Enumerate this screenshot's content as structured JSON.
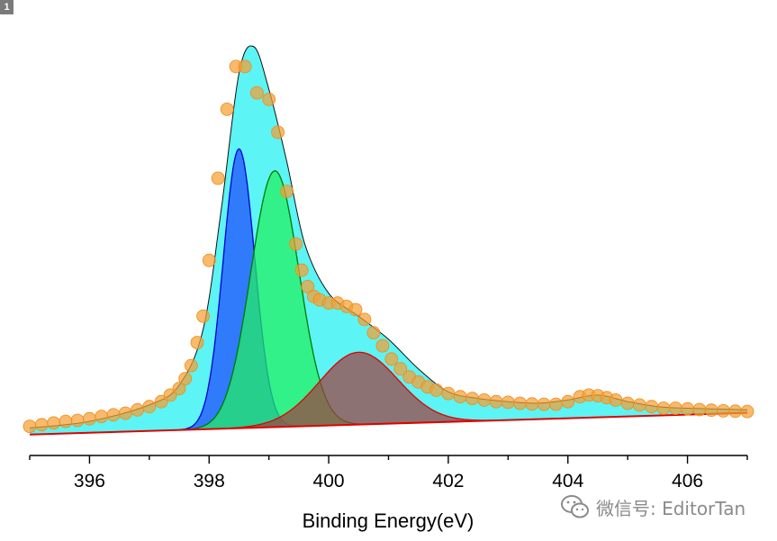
{
  "panel_label": "1",
  "watermark": {
    "icon": "wechat-icon",
    "text": "微信号: EditorTan"
  },
  "chart_data": {
    "type": "line",
    "xlabel": "Binding Energy(eV)",
    "ylabel": "",
    "xlim": [
      395,
      407
    ],
    "x_ticks": [
      396,
      398,
      400,
      402,
      404,
      406
    ],
    "y_axis_visible": false,
    "grid": false,
    "legend": "none",
    "background": {
      "name": "baseline",
      "color": "#e00000",
      "start": [
        395,
        2.0
      ],
      "end": [
        407,
        8.6
      ]
    },
    "peaks": [
      {
        "center": 398.5,
        "height": 85,
        "fwhm": 0.62,
        "fill": "#1f4cff",
        "edge": "#0000cc"
      },
      {
        "center": 399.1,
        "height": 78,
        "fwhm": 0.95,
        "fill": "#22f060",
        "edge": "#007a00"
      },
      {
        "center": 400.5,
        "height": 22,
        "fwhm": 1.55,
        "fill": "#a04040",
        "edge": "#e00000"
      }
    ],
    "envelope": {
      "name": "envelope",
      "fill": "#3ff2f2",
      "x": [
        395,
        396,
        397,
        397.5,
        397.9,
        398.2,
        398.5,
        398.75,
        399.0,
        399.3,
        399.6,
        400.0,
        400.5,
        401.0,
        401.5,
        402.0,
        402.5,
        403.0,
        403.5,
        404.0,
        404.5,
        405.0,
        405.5,
        406.0,
        407.0
      ],
      "y": [
        4,
        6,
        11,
        17,
        34,
        70,
        112,
        120,
        107,
        85,
        60,
        45,
        38,
        31,
        22,
        15,
        13,
        12,
        11.5,
        12.5,
        14,
        12,
        10.5,
        10,
        9.5
      ]
    },
    "measured": {
      "name": "data",
      "color": "#f5a033",
      "x": [
        395.0,
        395.2,
        395.4,
        395.6,
        395.8,
        396.0,
        396.2,
        396.4,
        396.6,
        396.8,
        397.0,
        397.2,
        397.35,
        397.5,
        397.6,
        397.7,
        397.8,
        397.9,
        398.0,
        398.15,
        398.3,
        398.45,
        398.6,
        398.8,
        399.0,
        399.15,
        399.3,
        399.45,
        399.55,
        399.65,
        399.75,
        399.85,
        400.0,
        400.15,
        400.3,
        400.45,
        400.6,
        400.75,
        400.9,
        401.05,
        401.2,
        401.35,
        401.5,
        401.65,
        401.8,
        402.0,
        402.2,
        402.4,
        402.6,
        402.8,
        403.0,
        403.2,
        403.4,
        403.6,
        403.8,
        404.0,
        404.2,
        404.35,
        404.5,
        404.65,
        404.8,
        405.0,
        405.2,
        405.4,
        405.6,
        405.8,
        406.0,
        406.2,
        406.4,
        406.6,
        406.8,
        407.0
      ],
      "y": [
        4.5,
        5,
        5.5,
        6,
        6.3,
        6.8,
        7.5,
        8,
        8.5,
        9.5,
        10.5,
        12,
        14,
        16,
        19,
        23,
        30,
        38,
        55,
        80,
        101,
        114,
        114,
        106,
        104,
        94,
        76,
        60,
        52,
        47,
        44,
        43,
        42,
        42,
        41,
        40,
        37,
        33,
        29,
        25,
        22,
        19.5,
        18,
        16.5,
        15.5,
        14.5,
        13.5,
        13,
        12.5,
        12,
        11.8,
        11.5,
        11.3,
        11.2,
        11.2,
        12,
        13.5,
        14,
        13.8,
        13.2,
        12.5,
        11.5,
        11,
        10.5,
        10,
        10,
        9.8,
        9.6,
        9.4,
        9.2,
        9.1,
        9
      ]
    }
  }
}
